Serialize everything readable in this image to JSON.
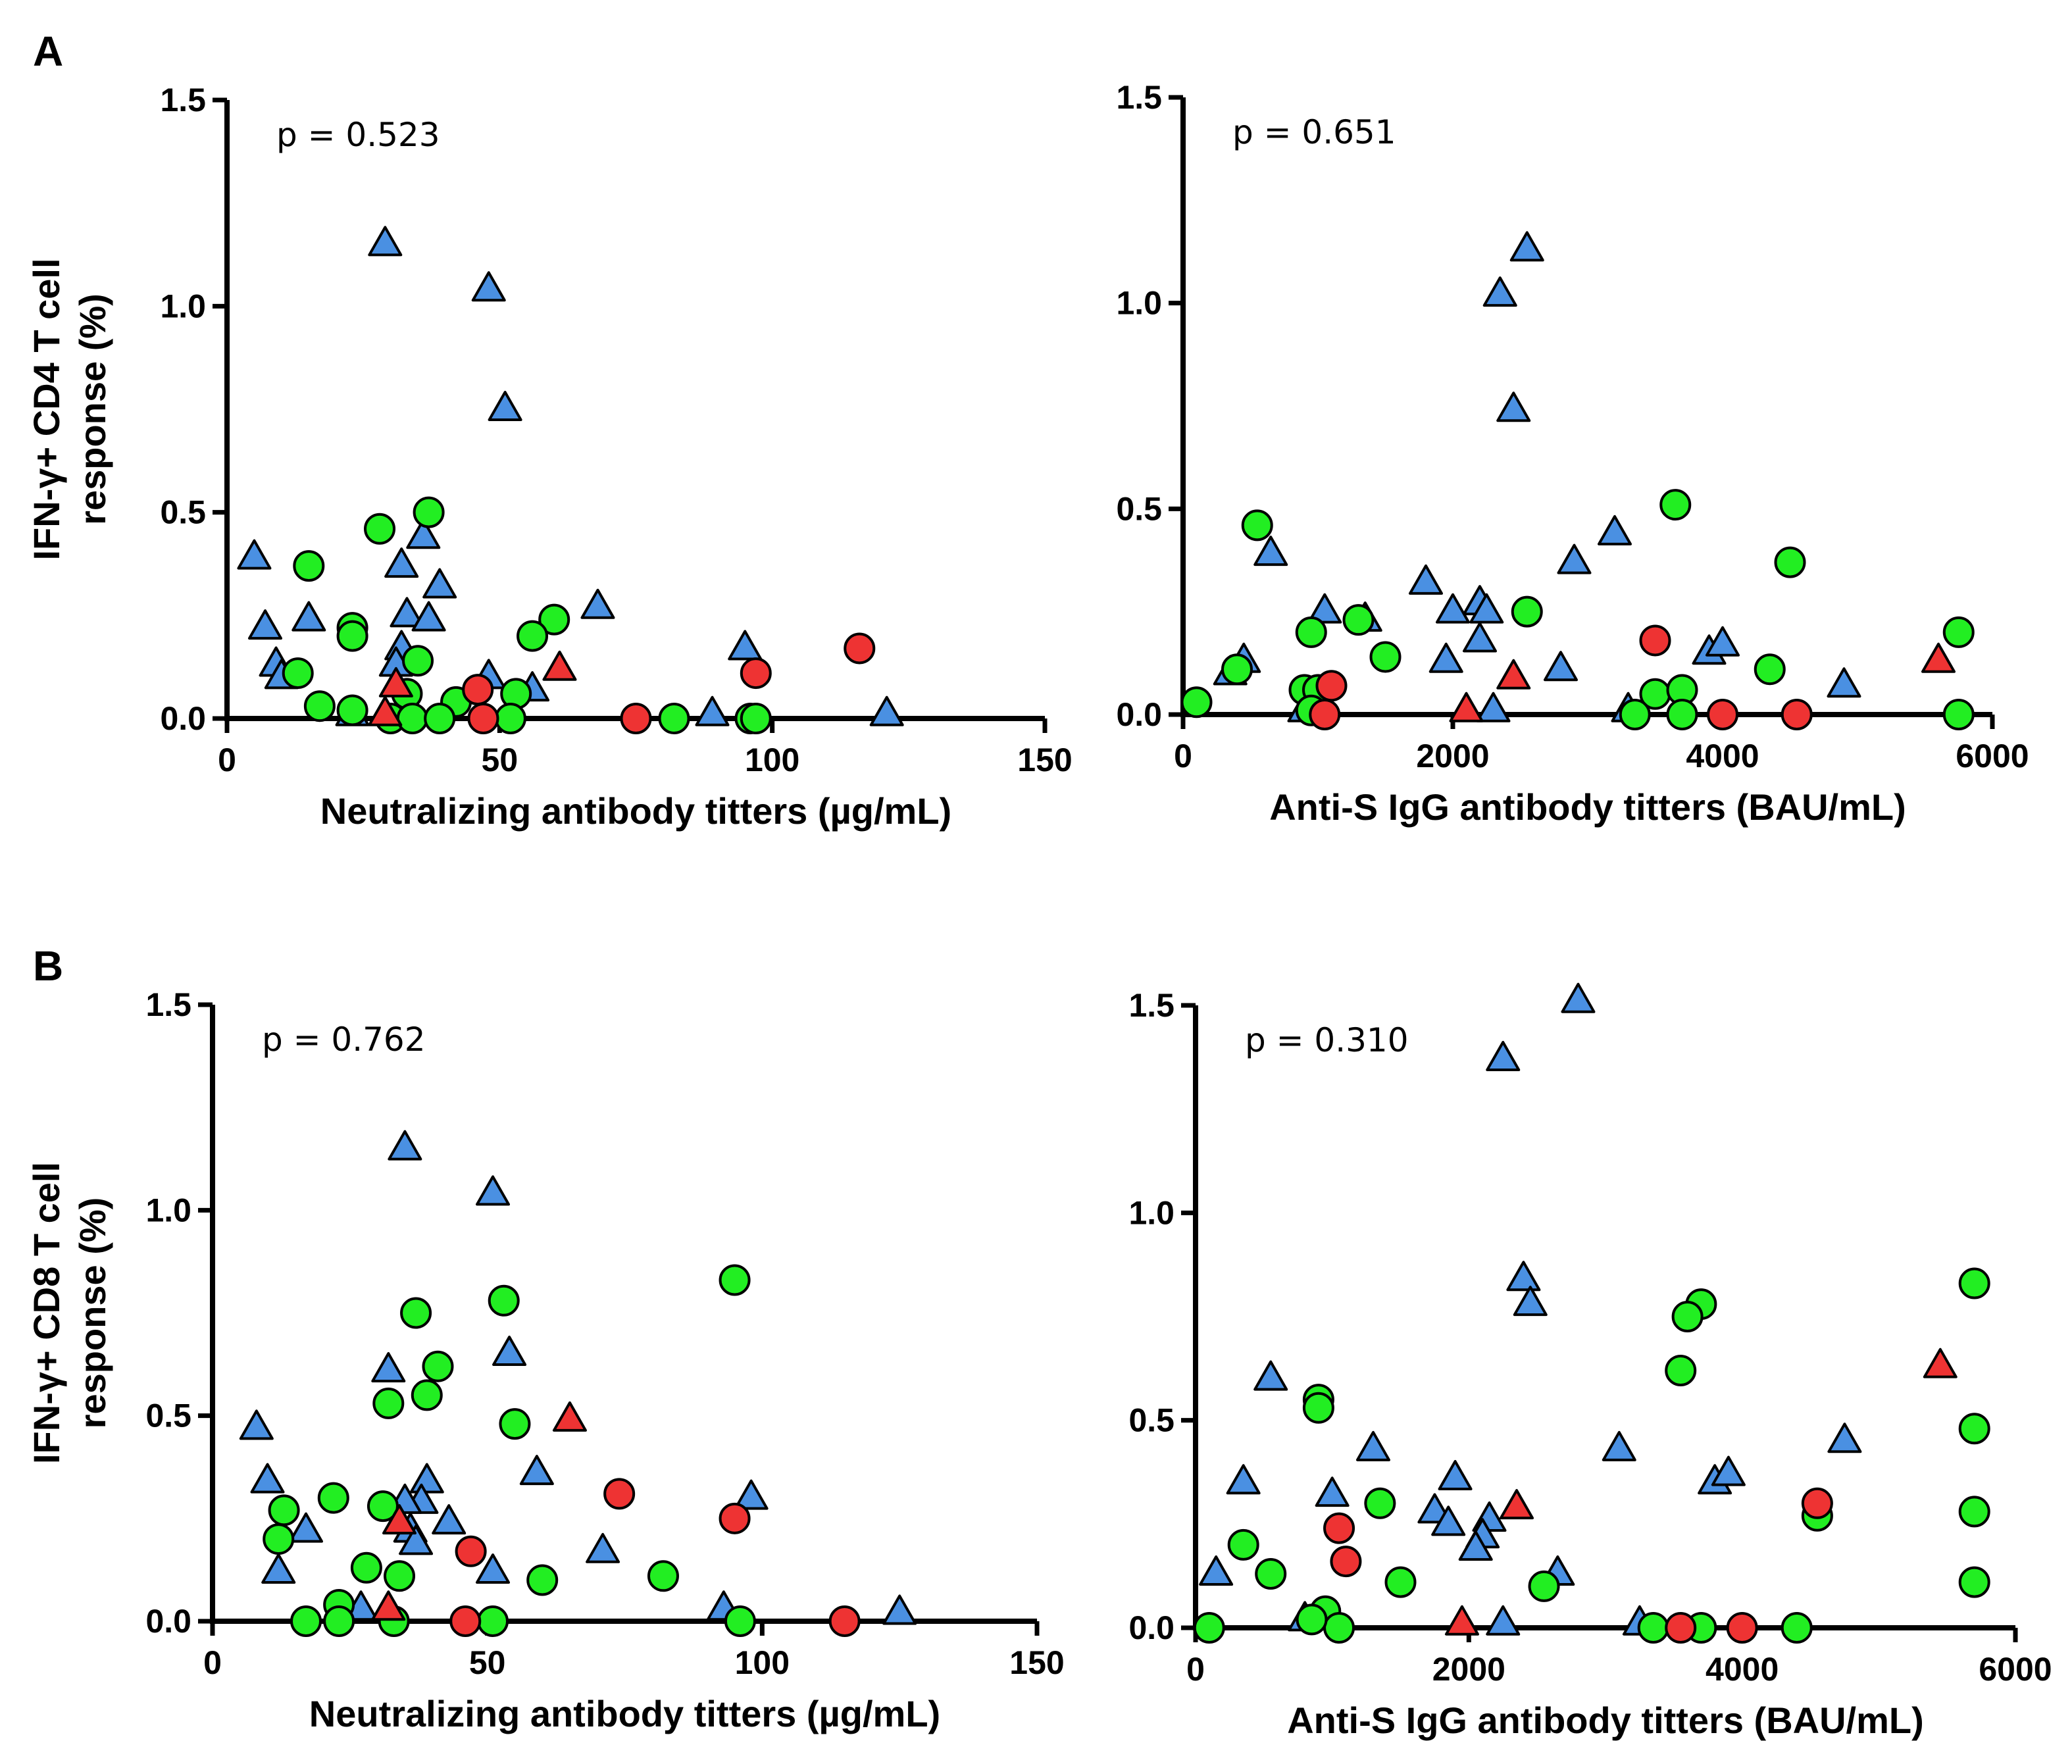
{
  "colors": {
    "blue": "#4a90e2",
    "green": "#22ee22",
    "red": "#ee3333",
    "axis": "#000000"
  },
  "panel_labels": [
    "A",
    "B"
  ],
  "chart_data": [
    {
      "id": "A-left",
      "type": "scatter",
      "panel": "A",
      "annotation": "p = 0.523",
      "xlabel": "Neutralizing antibody titters (µg/mL)",
      "ylabel": [
        "IFN-γ+ CD4 T cell",
        "response (%)"
      ],
      "xlim": [
        0,
        150
      ],
      "ylim": [
        0,
        1.5
      ],
      "xticks": [
        0,
        50,
        100,
        150
      ],
      "xtick_labels": [
        "0",
        "50",
        "100",
        "150"
      ],
      "yticks": [
        0,
        0.5,
        1.0,
        1.5
      ],
      "ytick_labels": [
        "0.0",
        "0.5",
        "1.0",
        "1.5"
      ],
      "series": [
        {
          "name": "blue-triangle",
          "marker": "triangle",
          "color": "#4a90e2",
          "points": [
            [
              29,
              1.15
            ],
            [
              48,
              1.04
            ],
            [
              51,
              0.75
            ],
            [
              36,
              0.44
            ],
            [
              5,
              0.39
            ],
            [
              32,
              0.37
            ],
            [
              39,
              0.32
            ],
            [
              68,
              0.27
            ],
            [
              7,
              0.22
            ],
            [
              15,
              0.24
            ],
            [
              33,
              0.25
            ],
            [
              37,
              0.24
            ],
            [
              95,
              0.17
            ],
            [
              9,
              0.13
            ],
            [
              10,
              0.1
            ],
            [
              32,
              0.17
            ],
            [
              31,
              0.13
            ],
            [
              48,
              0.1
            ],
            [
              56,
              0.07
            ],
            [
              23,
              0.01
            ],
            [
              89,
              0.01
            ],
            [
              121,
              0.01
            ]
          ]
        },
        {
          "name": "green-circle",
          "marker": "circle",
          "color": "#22ee22",
          "points": [
            [
              37,
              0.5
            ],
            [
              28,
              0.46
            ],
            [
              15,
              0.37
            ],
            [
              23,
              0.22
            ],
            [
              60,
              0.24
            ],
            [
              23,
              0.2
            ],
            [
              56,
              0.2
            ],
            [
              35,
              0.14
            ],
            [
              13,
              0.11
            ],
            [
              17,
              0.03
            ],
            [
              23,
              0.02
            ],
            [
              33,
              0.06
            ],
            [
              42,
              0.04
            ],
            [
              53,
              0.06
            ],
            [
              30,
              0.0
            ],
            [
              34,
              0.0
            ],
            [
              39,
              0.0
            ],
            [
              52,
              0.0
            ],
            [
              82,
              0.0
            ],
            [
              96,
              0.0
            ],
            [
              97,
              0.0
            ]
          ]
        },
        {
          "name": "red-circle",
          "marker": "circle",
          "color": "#ee3333",
          "points": [
            [
              116,
              0.17
            ],
            [
              97,
              0.11
            ],
            [
              47,
              0.0
            ],
            [
              75,
              0.0
            ],
            [
              46,
              0.07
            ]
          ]
        },
        {
          "name": "red-triangle",
          "marker": "triangle",
          "color": "#ee3333",
          "points": [
            [
              61,
              0.12
            ],
            [
              31,
              0.08
            ],
            [
              29,
              0.01
            ]
          ]
        }
      ]
    },
    {
      "id": "A-right",
      "type": "scatter",
      "panel": "A",
      "annotation": "p = 0.651",
      "xlabel": "Anti-S IgG antibody titters (BAU/mL)",
      "xlim": [
        0,
        6000
      ],
      "ylim": [
        0,
        1.5
      ],
      "xticks": [
        0,
        2000,
        4000,
        6000
      ],
      "xtick_labels": [
        "0",
        "2000",
        "4000",
        "6000"
      ],
      "yticks": [
        0,
        0.5,
        1.0,
        1.5
      ],
      "ytick_labels": [
        "0.0",
        "0.5",
        "1.0",
        "1.5"
      ],
      "series": [
        {
          "name": "blue-triangle",
          "marker": "triangle",
          "color": "#4a90e2",
          "points": [
            [
              2550,
              1.13
            ],
            [
              2350,
              1.02
            ],
            [
              2450,
              0.74
            ],
            [
              3200,
              0.44
            ],
            [
              650,
              0.39
            ],
            [
              2900,
              0.37
            ],
            [
              1800,
              0.32
            ],
            [
              2200,
              0.27
            ],
            [
              1050,
              0.25
            ],
            [
              2000,
              0.25
            ],
            [
              1350,
              0.23
            ],
            [
              2250,
              0.25
            ],
            [
              2200,
              0.18
            ],
            [
              3900,
              0.15
            ],
            [
              4000,
              0.17
            ],
            [
              1950,
              0.13
            ],
            [
              2800,
              0.11
            ],
            [
              4900,
              0.07
            ],
            [
              350,
              0.1
            ],
            [
              450,
              0.13
            ],
            [
              900,
              0.01
            ],
            [
              3300,
              0.01
            ],
            [
              2300,
              0.01
            ]
          ]
        },
        {
          "name": "green-circle",
          "marker": "circle",
          "color": "#22ee22",
          "points": [
            [
              3650,
              0.51
            ],
            [
              550,
              0.46
            ],
            [
              4500,
              0.37
            ],
            [
              2550,
              0.25
            ],
            [
              1300,
              0.23
            ],
            [
              950,
              0.2
            ],
            [
              5750,
              0.2
            ],
            [
              1500,
              0.14
            ],
            [
              4350,
              0.11
            ],
            [
              400,
              0.11
            ],
            [
              100,
              0.03
            ],
            [
              900,
              0.06
            ],
            [
              1000,
              0.06
            ],
            [
              3500,
              0.05
            ],
            [
              3700,
              0.06
            ],
            [
              3350,
              0.0
            ],
            [
              3700,
              0.0
            ],
            [
              5750,
              0.0
            ],
            [
              950,
              0.01
            ]
          ]
        },
        {
          "name": "red-circle",
          "marker": "circle",
          "color": "#ee3333",
          "points": [
            [
              3500,
              0.18
            ],
            [
              1100,
              0.07
            ],
            [
              1050,
              0.0
            ],
            [
              4000,
              0.0
            ],
            [
              4550,
              0.0
            ]
          ]
        },
        {
          "name": "red-triangle",
          "marker": "triangle",
          "color": "#ee3333",
          "points": [
            [
              5600,
              0.13
            ],
            [
              2450,
              0.09
            ],
            [
              2100,
              0.01
            ]
          ]
        }
      ]
    },
    {
      "id": "B-left",
      "type": "scatter",
      "panel": "B",
      "annotation": "p = 0.762",
      "xlabel": "Neutralizing antibody titters (µg/mL)",
      "ylabel": [
        "IFN-γ+ CD8 T cell",
        "response (%)"
      ],
      "xlim": [
        0,
        150
      ],
      "ylim": [
        0,
        1.5
      ],
      "xticks": [
        0,
        50,
        100,
        150
      ],
      "xtick_labels": [
        "0",
        "50",
        "100",
        "150"
      ],
      "yticks": [
        0,
        0.5,
        1.0,
        1.5
      ],
      "ytick_labels": [
        "0.0",
        "0.5",
        "1.0",
        "1.5"
      ],
      "series": [
        {
          "name": "blue-triangle",
          "marker": "triangle",
          "color": "#4a90e2",
          "points": [
            [
              35,
              1.15
            ],
            [
              51,
              1.04
            ],
            [
              54,
              0.65
            ],
            [
              32,
              0.61
            ],
            [
              8,
              0.47
            ],
            [
              59,
              0.36
            ],
            [
              10,
              0.34
            ],
            [
              39,
              0.34
            ],
            [
              38,
              0.29
            ],
            [
              35,
              0.29
            ],
            [
              98,
              0.3
            ],
            [
              17,
              0.22
            ],
            [
              43,
              0.24
            ],
            [
              36,
              0.22
            ],
            [
              37,
              0.19
            ],
            [
              71,
              0.17
            ],
            [
              12,
              0.12
            ],
            [
              51,
              0.12
            ],
            [
              27,
              0.03
            ],
            [
              93,
              0.03
            ],
            [
              125,
              0.02
            ]
          ]
        },
        {
          "name": "green-circle",
          "marker": "circle",
          "color": "#22ee22",
          "points": [
            [
              95,
              0.83
            ],
            [
              53,
              0.78
            ],
            [
              37,
              0.75
            ],
            [
              41,
              0.62
            ],
            [
              39,
              0.55
            ],
            [
              32,
              0.53
            ],
            [
              55,
              0.48
            ],
            [
              13,
              0.27
            ],
            [
              22,
              0.3
            ],
            [
              31,
              0.28
            ],
            [
              12,
              0.2
            ],
            [
              28,
              0.13
            ],
            [
              34,
              0.11
            ],
            [
              60,
              0.1
            ],
            [
              82,
              0.11
            ],
            [
              23,
              0.04
            ],
            [
              17,
              0.0
            ],
            [
              23,
              0.0
            ],
            [
              33,
              0.0
            ],
            [
              51,
              0.0
            ],
            [
              96,
              0.0
            ]
          ]
        },
        {
          "name": "red-circle",
          "marker": "circle",
          "color": "#ee3333",
          "points": [
            [
              74,
              0.31
            ],
            [
              95,
              0.25
            ],
            [
              47,
              0.17
            ],
            [
              46,
              0.0
            ],
            [
              115,
              0.0
            ]
          ]
        },
        {
          "name": "red-triangle",
          "marker": "triangle",
          "color": "#ee3333",
          "points": [
            [
              65,
              0.49
            ],
            [
              34,
              0.24
            ],
            [
              32,
              0.03
            ]
          ]
        }
      ]
    },
    {
      "id": "B-right",
      "type": "scatter",
      "panel": "B",
      "annotation": "p = 0.310",
      "xlabel": "Anti-S IgG antibody titters (BAU/mL)",
      "xlim": [
        0,
        6000
      ],
      "ylim": [
        0,
        1.5
      ],
      "xticks": [
        0,
        2000,
        4000,
        6000
      ],
      "xtick_labels": [
        "0",
        "2000",
        "4000",
        "6000"
      ],
      "yticks": [
        0,
        0.5,
        1.0,
        1.5
      ],
      "ytick_labels": [
        "0.0",
        "0.5",
        "1.0",
        "1.5"
      ],
      "series": [
        {
          "name": "blue-triangle",
          "marker": "triangle",
          "color": "#4a90e2",
          "points": [
            [
              2800,
              1.51
            ],
            [
              2250,
              1.37
            ],
            [
              2400,
              0.84
            ],
            [
              2450,
              0.78
            ],
            [
              550,
              0.6
            ],
            [
              4750,
              0.45
            ],
            [
              1300,
              0.43
            ],
            [
              3100,
              0.43
            ],
            [
              3800,
              0.35
            ],
            [
              3900,
              0.37
            ],
            [
              350,
              0.35
            ],
            [
              1000,
              0.32
            ],
            [
              1900,
              0.36
            ],
            [
              1750,
              0.28
            ],
            [
              2150,
              0.26
            ],
            [
              1850,
              0.25
            ],
            [
              2100,
              0.22
            ],
            [
              2050,
              0.19
            ],
            [
              150,
              0.13
            ],
            [
              2650,
              0.13
            ],
            [
              800,
              0.02
            ],
            [
              3250,
              0.01
            ],
            [
              2250,
              0.01
            ]
          ]
        },
        {
          "name": "green-circle",
          "marker": "circle",
          "color": "#22ee22",
          "points": [
            [
              5700,
              0.83
            ],
            [
              3700,
              0.78
            ],
            [
              3600,
              0.75
            ],
            [
              3550,
              0.62
            ],
            [
              900,
              0.55
            ],
            [
              900,
              0.53
            ],
            [
              5700,
              0.48
            ],
            [
              1350,
              0.3
            ],
            [
              5700,
              0.28
            ],
            [
              4550,
              0.27
            ],
            [
              350,
              0.2
            ],
            [
              550,
              0.13
            ],
            [
              1500,
              0.11
            ],
            [
              2550,
              0.1
            ],
            [
              5700,
              0.11
            ],
            [
              950,
              0.04
            ],
            [
              100,
              0.0
            ],
            [
              1050,
              0.0
            ],
            [
              3350,
              0.0
            ],
            [
              3700,
              0.0
            ],
            [
              4400,
              0.0
            ],
            [
              850,
              0.02
            ]
          ]
        },
        {
          "name": "red-circle",
          "marker": "circle",
          "color": "#ee3333",
          "points": [
            [
              4550,
              0.3
            ],
            [
              1050,
              0.24
            ],
            [
              1100,
              0.16
            ],
            [
              3550,
              0.0
            ],
            [
              4000,
              0.0
            ]
          ]
        },
        {
          "name": "red-triangle",
          "marker": "triangle",
          "color": "#ee3333",
          "points": [
            [
              5450,
              0.63
            ],
            [
              2350,
              0.29
            ],
            [
              1950,
              0.01
            ]
          ]
        }
      ]
    }
  ]
}
